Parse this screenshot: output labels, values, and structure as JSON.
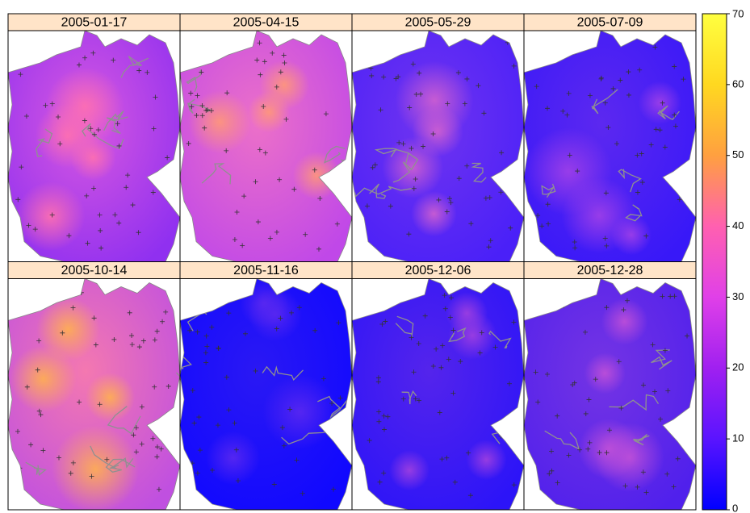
{
  "panels": [
    {
      "title": "2005-01-17"
    },
    {
      "title": "2005-04-15"
    },
    {
      "title": "2005-05-29"
    },
    {
      "title": "2005-07-09"
    },
    {
      "title": "2005-10-14"
    },
    {
      "title": "2005-11-16"
    },
    {
      "title": "2005-12-06"
    },
    {
      "title": "2005-12-28"
    }
  ],
  "colorbar": {
    "lim": [
      0,
      70
    ],
    "ticks": [
      0,
      10,
      20,
      30,
      40,
      50,
      60,
      70
    ],
    "colors": [
      "#0000ff",
      "#5a14ff",
      "#a020f0",
      "#e040e8",
      "#ff60b0",
      "#ffa040",
      "#ffd820",
      "#ffff40"
    ]
  }
}
